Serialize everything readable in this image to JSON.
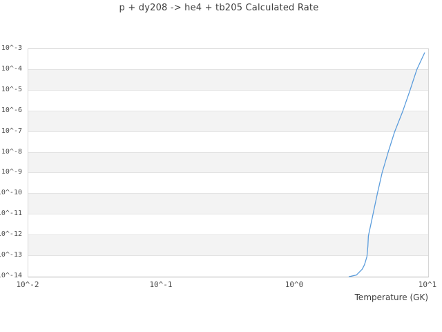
{
  "title": "p + dy208 -> he4 + tb205 Calculated Rate",
  "chart_data": {
    "type": "line",
    "title": "p + dy208 -> he4 + tb205 Calculated Rate",
    "xlabel": "Temperature (GK)",
    "ylabel": "",
    "x_scale": "log",
    "y_scale": "log",
    "xlim": [
      0.01,
      10
    ],
    "ylim": [
      1e-14,
      0.001
    ],
    "x_ticks": [
      "10^-2",
      "10^-1",
      "10^0",
      "10^1"
    ],
    "y_ticks": [
      "10^-3",
      "10^-4",
      "10^-5",
      "10^-6",
      "10^-7",
      "10^-8",
      "10^-9",
      "10^-10",
      "10^-11",
      "10^-12",
      "10^-13",
      "10^-14"
    ],
    "grid": "horizontal gridlines at each y decade, no vertical gridlines",
    "background_bands": "alternating white and light-gray horizontal decade bands",
    "legend": "none",
    "series": [
      {
        "name": "calculated rate",
        "color": "#5a9cdc",
        "points_T_GK_vs_rate": [
          [
            2.55,
            1e-14
          ],
          [
            2.9,
            1.2e-14
          ],
          [
            3.2,
            2.3e-14
          ],
          [
            3.33,
            3.8e-14
          ],
          [
            3.47,
            9.3e-14
          ],
          [
            3.53,
            3e-13
          ],
          [
            3.56,
            9.3e-13
          ],
          [
            3.85,
            1e-11
          ],
          [
            4.15,
            1e-10
          ],
          [
            4.5,
            1e-09
          ],
          [
            5.0,
            1e-08
          ],
          [
            5.6,
            1e-07
          ],
          [
            6.45,
            1e-06
          ],
          [
            7.3,
            1e-05
          ],
          [
            8.2,
            0.0001
          ],
          [
            9.4,
            0.00066
          ]
        ]
      }
    ]
  },
  "colors": {
    "line": "#5a9cdc",
    "band_gray": "#f3f3f3",
    "band_white": "#ffffff",
    "gridline": "#e3e3e3",
    "plot_border": "#d6d6d6",
    "axis_bottom": "#aeaeae",
    "title_text": "#3d3d3d",
    "tick_text": "#4b4b4b",
    "background": "#ffffff"
  }
}
